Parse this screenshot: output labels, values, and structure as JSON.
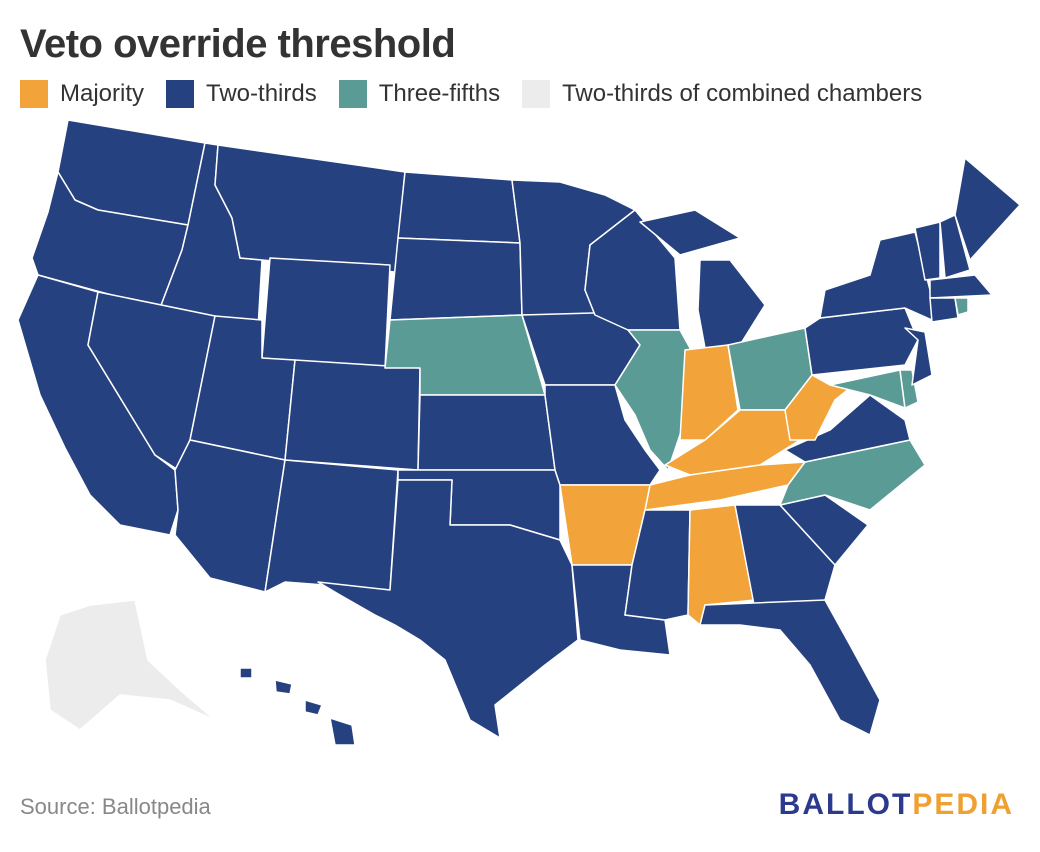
{
  "title": "Veto override threshold",
  "legend": [
    {
      "key": "majority",
      "label": "Majority",
      "color": "#f2a33a"
    },
    {
      "key": "two_thirds",
      "label": "Two-thirds",
      "color": "#26417f"
    },
    {
      "key": "three_fifths",
      "label": "Three-fifths",
      "color": "#5a9b96"
    },
    {
      "key": "combined",
      "label": "Two-thirds of combined chambers",
      "color": "#ececec"
    }
  ],
  "categories": {
    "majority": [
      "Indiana",
      "West Virginia",
      "Kentucky",
      "Tennessee",
      "Arkansas",
      "Alabama"
    ],
    "three_fifths": [
      "Nebraska",
      "Illinois",
      "Ohio",
      "Maryland",
      "Delaware",
      "North Carolina",
      "Rhode Island"
    ],
    "combined": [
      "Alaska"
    ],
    "two_thirds": [
      "Washington",
      "Oregon",
      "California",
      "Idaho",
      "Nevada",
      "Montana",
      "Wyoming",
      "Utah",
      "Arizona",
      "Colorado",
      "New Mexico",
      "North Dakota",
      "South Dakota",
      "Kansas",
      "Oklahoma",
      "Texas",
      "Minnesota",
      "Iowa",
      "Missouri",
      "Louisiana",
      "Wisconsin",
      "Michigan",
      "Mississippi",
      "Georgia",
      "Florida",
      "South Carolina",
      "Virginia",
      "Pennsylvania",
      "New York",
      "New Jersey",
      "Connecticut",
      "Massachusetts",
      "Vermont",
      "New Hampshire",
      "Maine",
      "Hawaii"
    ]
  },
  "source": "Source: Ballotpedia",
  "brand": {
    "part1": "BALLOT",
    "part2": "PEDIA"
  }
}
